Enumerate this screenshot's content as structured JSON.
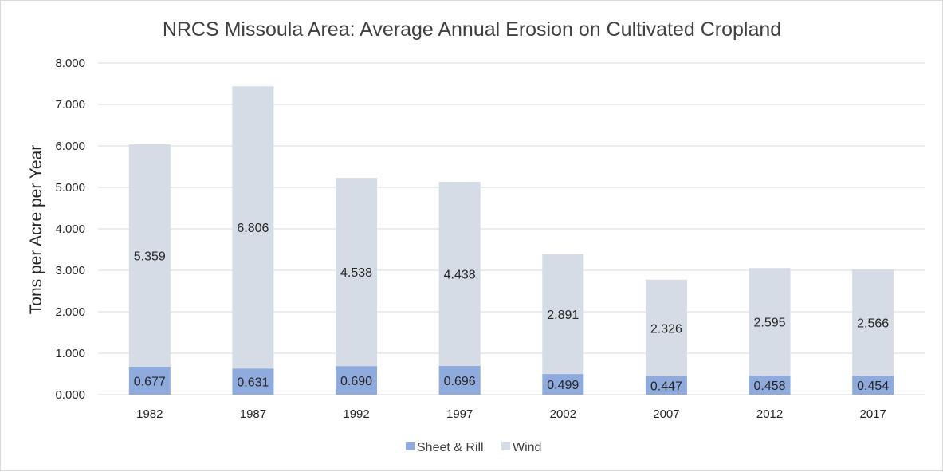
{
  "chart_data": {
    "type": "bar",
    "stacked": true,
    "title": "NRCS Missoula Area: Average Annual Erosion on Cultivated Cropland",
    "xlabel": "",
    "ylabel": "Tons per Acre per Year",
    "ylim": [
      0,
      8
    ],
    "yticks": [
      "0.000",
      "1.000",
      "2.000",
      "3.000",
      "4.000",
      "5.000",
      "6.000",
      "7.000",
      "8.000"
    ],
    "grid": true,
    "legend_position": "bottom",
    "categories": [
      "1982",
      "1987",
      "1992",
      "1997",
      "2002",
      "2007",
      "2012",
      "2017"
    ],
    "series": [
      {
        "name": "Sheet & Rill",
        "color": "#8faadc",
        "values": [
          0.677,
          0.631,
          0.69,
          0.696,
          0.499,
          0.447,
          0.458,
          0.454
        ],
        "labels": [
          "0.677",
          "0.631",
          "0.690",
          "0.696",
          "0.499",
          "0.447",
          "0.458",
          "0.454"
        ]
      },
      {
        "name": "Wind",
        "color": "#d6dce5",
        "values": [
          5.359,
          6.806,
          4.538,
          4.438,
          2.891,
          2.326,
          2.595,
          2.566
        ],
        "labels": [
          "5.359",
          "6.806",
          "4.538",
          "4.438",
          "2.891",
          "2.326",
          "2.595",
          "2.566"
        ]
      }
    ]
  }
}
